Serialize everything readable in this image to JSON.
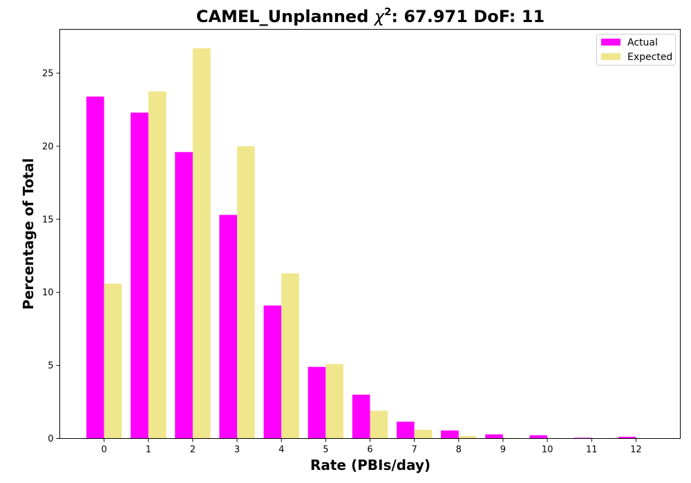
{
  "chart_data": {
    "type": "bar",
    "title_prefix": "CAMEL_Unplanned ",
    "title_symbol": "χ",
    "title_superscript": "2",
    "title_suffix": ": 67.971 DoF: 11",
    "xlabel": "Rate (PBIs/day)",
    "ylabel": "Percentage of Total",
    "categories": [
      "0",
      "1",
      "2",
      "3",
      "4",
      "5",
      "6",
      "7",
      "8",
      "9",
      "10",
      "11",
      "12"
    ],
    "series": [
      {
        "name": "Actual",
        "color": "#ff00ff",
        "values": [
          23.4,
          22.3,
          19.6,
          15.3,
          9.1,
          4.9,
          3.0,
          1.15,
          0.55,
          0.28,
          0.22,
          0.05,
          0.12
        ]
      },
      {
        "name": "Expected",
        "color": "#f0e68c",
        "values": [
          10.6,
          23.75,
          26.7,
          20.0,
          11.3,
          5.1,
          1.9,
          0.6,
          0.17,
          0.04,
          0.01,
          0.0,
          0.0
        ]
      }
    ],
    "yticks": [
      0,
      5,
      10,
      15,
      20,
      25
    ],
    "ylim": [
      0,
      28.0
    ],
    "xlim": [
      -1.0,
      13.0
    ],
    "legend_position": "top-right",
    "grid": false
  }
}
